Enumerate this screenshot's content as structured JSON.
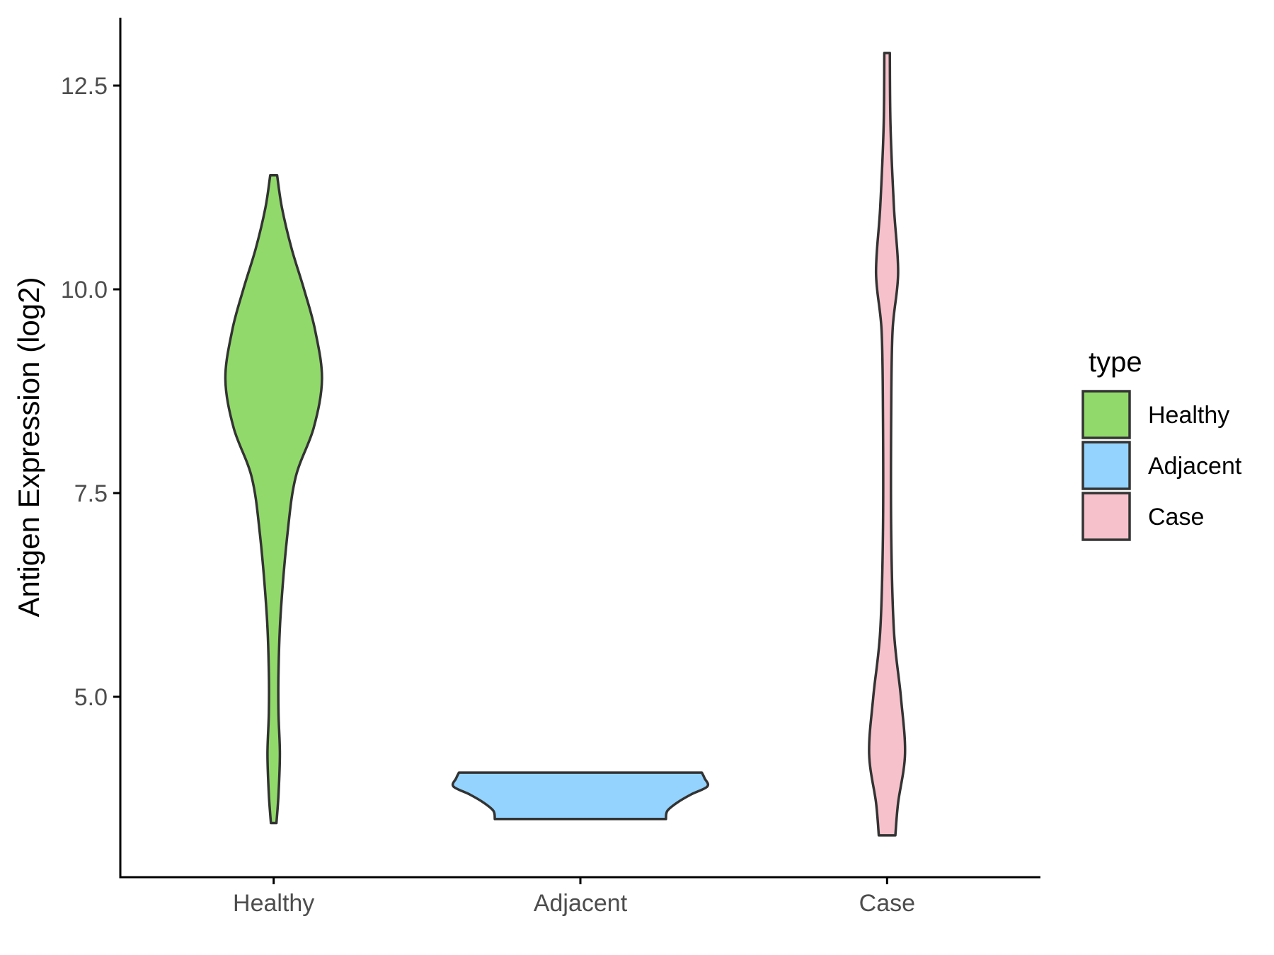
{
  "chart_data": {
    "type": "violin",
    "xlabel": "",
    "ylabel": "Antigen Expression (log2)",
    "categories": [
      "Healthy",
      "Adjacent",
      "Case"
    ],
    "ylim": [
      3.0,
      13.3
    ],
    "yticks": [
      5.0,
      7.5,
      10.0,
      12.5
    ],
    "ytick_labels": [
      "5.0",
      "7.5",
      "10.0",
      "12.5"
    ],
    "grid": false,
    "legend": {
      "title": "type",
      "position": "right",
      "entries": [
        "Healthy",
        "Adjacent",
        "Case"
      ]
    },
    "colors": {
      "Healthy": "#91d96a",
      "Adjacent": "#93d3fd",
      "Case": "#f6c1cb",
      "outline": "#333333"
    },
    "series": [
      {
        "name": "Healthy",
        "min": 3.45,
        "max": 11.4,
        "density": [
          [
            3.45,
            0.02
          ],
          [
            3.8,
            0.035
          ],
          [
            4.3,
            0.045
          ],
          [
            4.8,
            0.035
          ],
          [
            5.3,
            0.035
          ],
          [
            6.0,
            0.05
          ],
          [
            7.0,
            0.1
          ],
          [
            7.7,
            0.16
          ],
          [
            8.3,
            0.29
          ],
          [
            8.9,
            0.35
          ],
          [
            9.5,
            0.3
          ],
          [
            10.0,
            0.22
          ],
          [
            10.5,
            0.13
          ],
          [
            11.0,
            0.06
          ],
          [
            11.4,
            0.025
          ]
        ]
      },
      {
        "name": "Adjacent",
        "min": 3.5,
        "max": 4.07,
        "density": [
          [
            3.5,
            0.62
          ],
          [
            3.6,
            0.63
          ],
          [
            3.7,
            0.7
          ],
          [
            3.8,
            0.8
          ],
          [
            3.9,
            0.92
          ],
          [
            4.0,
            0.9
          ],
          [
            4.07,
            0.88
          ]
        ]
      },
      {
        "name": "Case",
        "min": 3.3,
        "max": 12.9,
        "density": [
          [
            3.3,
            0.06
          ],
          [
            3.7,
            0.08
          ],
          [
            4.3,
            0.13
          ],
          [
            5.0,
            0.1
          ],
          [
            5.8,
            0.05
          ],
          [
            7.0,
            0.03
          ],
          [
            8.5,
            0.03
          ],
          [
            9.5,
            0.04
          ],
          [
            10.2,
            0.08
          ],
          [
            11.0,
            0.05
          ],
          [
            12.0,
            0.025
          ],
          [
            12.9,
            0.02
          ]
        ]
      }
    ]
  }
}
